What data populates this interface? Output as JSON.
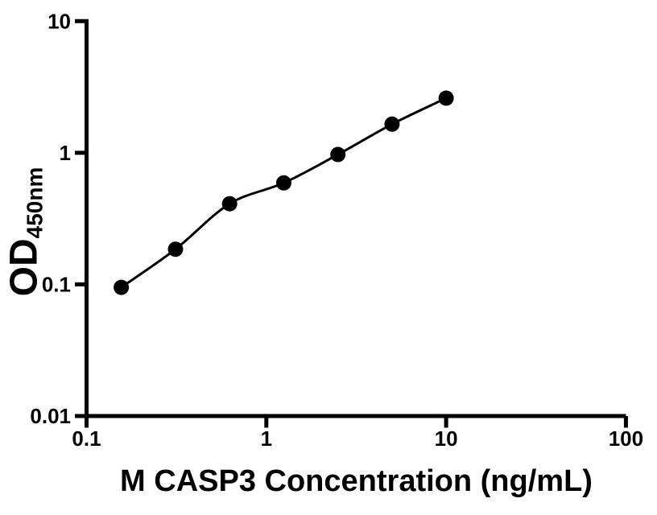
{
  "figure": {
    "background_color": "#ffffff",
    "ink_color": "#000000"
  },
  "chart_data": {
    "type": "scatter",
    "subtype": "standard-curve-with-fit-line",
    "title": "",
    "xlabel": "M CASP3 Concentration (ng/mL)",
    "ylabel_main": "OD",
    "ylabel_sub": "450nm",
    "x_scale": "log",
    "y_scale": "log",
    "xlim": [
      0.1,
      100
    ],
    "ylim": [
      0.01,
      10
    ],
    "grid": false,
    "legend_position": "none",
    "x_ticks": [
      {
        "value": 0.1,
        "label": "0.1"
      },
      {
        "value": 1,
        "label": "1"
      },
      {
        "value": 10,
        "label": "10"
      },
      {
        "value": 100,
        "label": "100"
      }
    ],
    "y_ticks": [
      {
        "value": 10,
        "label": "10"
      },
      {
        "value": 1,
        "label": "1"
      },
      {
        "value": 0.1,
        "label": "0.1"
      },
      {
        "value": 0.01,
        "label": "0.01"
      }
    ],
    "series": [
      {
        "marker": "filled-circle",
        "color": "#000000",
        "x": [
          0.156,
          0.3125,
          0.625,
          1.25,
          2.5,
          5,
          10
        ],
        "y": [
          0.095,
          0.185,
          0.41,
          0.59,
          0.97,
          1.65,
          2.6
        ]
      }
    ]
  }
}
